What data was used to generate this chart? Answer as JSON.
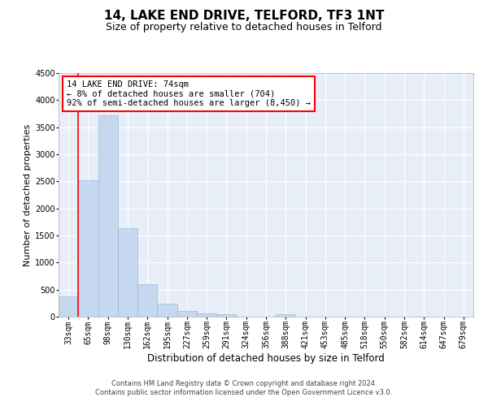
{
  "title": "14, LAKE END DRIVE, TELFORD, TF3 1NT",
  "subtitle": "Size of property relative to detached houses in Telford",
  "xlabel": "Distribution of detached houses by size in Telford",
  "ylabel": "Number of detached properties",
  "bar_color": "#c5d8f0",
  "bar_edge_color": "#8ab0d8",
  "categories": [
    "33sqm",
    "65sqm",
    "98sqm",
    "130sqm",
    "162sqm",
    "195sqm",
    "227sqm",
    "259sqm",
    "291sqm",
    "324sqm",
    "356sqm",
    "388sqm",
    "421sqm",
    "453sqm",
    "485sqm",
    "518sqm",
    "550sqm",
    "582sqm",
    "614sqm",
    "647sqm",
    "679sqm"
  ],
  "values": [
    380,
    2520,
    3720,
    1640,
    605,
    245,
    100,
    60,
    50,
    0,
    0,
    50,
    0,
    0,
    0,
    0,
    0,
    0,
    0,
    0,
    0
  ],
  "ylim": [
    0,
    4500
  ],
  "yticks": [
    0,
    500,
    1000,
    1500,
    2000,
    2500,
    3000,
    3500,
    4000,
    4500
  ],
  "property_line_x": 1.0,
  "annotation_text": "14 LAKE END DRIVE: 74sqm\n← 8% of detached houses are smaller (704)\n92% of semi-detached houses are larger (8,450) →",
  "annotation_box_color": "white",
  "annotation_box_edge_color": "red",
  "vline_color": "red",
  "background_color": "#e8eef8",
  "grid_color": "white",
  "footer_text": "Contains HM Land Registry data © Crown copyright and database right 2024.\nContains public sector information licensed under the Open Government Licence v3.0.",
  "title_fontsize": 11,
  "subtitle_fontsize": 9,
  "xlabel_fontsize": 8.5,
  "ylabel_fontsize": 8,
  "tick_fontsize": 7,
  "annotation_fontsize": 7.5,
  "footer_fontsize": 6
}
